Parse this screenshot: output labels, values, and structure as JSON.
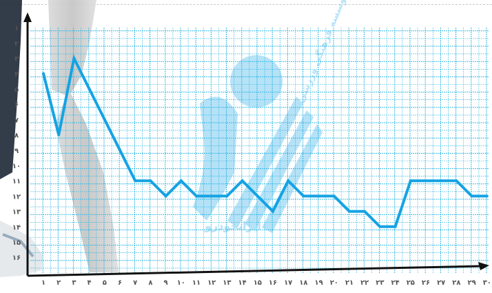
{
  "chart_data": {
    "type": "line",
    "title": "",
    "xlabel": "",
    "ylabel": "",
    "grid": true,
    "y_inverted": true,
    "x": [
      "۱",
      "۲",
      "۳",
      "۴",
      "۵",
      "۶",
      "۷",
      "۸",
      "۹",
      "۱۰",
      "۱۱",
      "۱۲",
      "۱۳",
      "۱۴",
      "۱۵",
      "۱۶",
      "۱۷",
      "۱۸",
      "۱۹",
      "۲۰",
      "۲۱",
      "۲۲",
      "۲۳",
      "۲۴",
      "۲۵",
      "۲۶",
      "۲۷",
      "۲۸",
      "۲۹",
      "۳۰"
    ],
    "y_ticks": [
      "۱",
      "۲",
      "۳",
      "۴",
      "۵",
      "۶",
      "۷",
      "۸",
      "۹",
      "۱۰",
      "۱۱",
      "۱۲",
      "۱۳",
      "۱۴",
      "۱۵",
      "۱۶"
    ],
    "ylim": [
      0,
      17
    ],
    "series": [
      {
        "values": [
          4,
          8,
          3,
          5,
          7,
          9,
          11,
          11,
          12,
          11,
          12,
          12,
          12,
          11,
          12,
          13,
          11,
          12,
          12,
          12,
          13,
          13,
          14,
          14,
          11,
          11,
          11,
          11,
          12,
          12
        ]
      }
    ],
    "colors": {
      "line": "#15a3e3",
      "grid": "#35b8e3",
      "axis": "#111111",
      "watermark": "#5fc0ee"
    }
  },
  "watermark": {
    "arc_text": "موسسه فرهنگی ورزشی",
    "brand_text": "ایرانخودرو"
  }
}
